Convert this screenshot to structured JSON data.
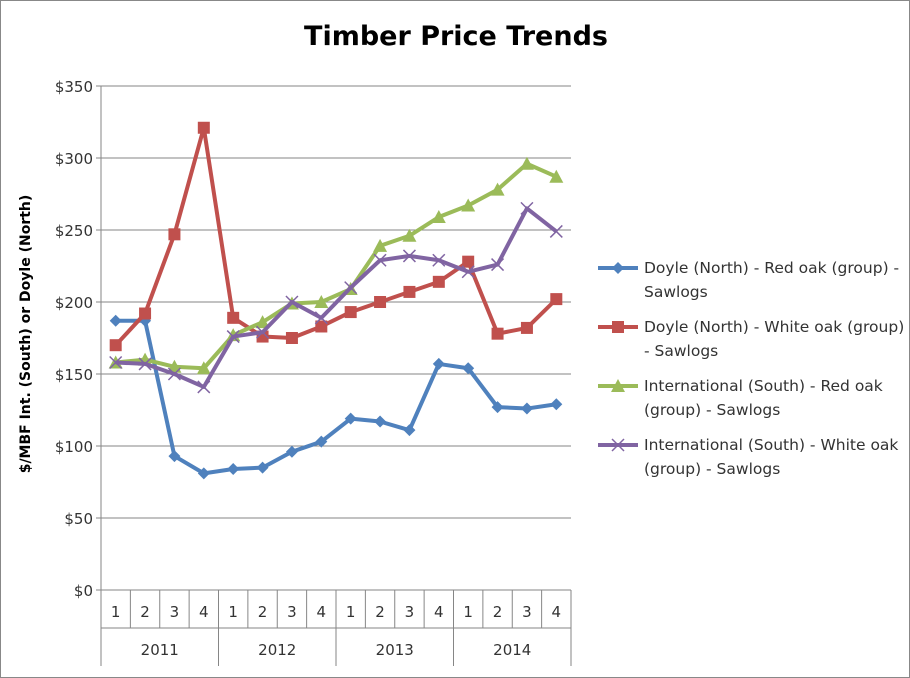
{
  "chart_data": {
    "type": "line",
    "title": "Timber Price Trends",
    "ylabel": "$/MBF Int. (South) or Doyle (North)",
    "xlabel": "",
    "ylim": [
      0,
      350
    ],
    "yticks": [
      "$0",
      "$50",
      "$100",
      "$150",
      "$200",
      "$250",
      "$300",
      "$350"
    ],
    "ytick_values": [
      0,
      50,
      100,
      150,
      200,
      250,
      300,
      350
    ],
    "grid": true,
    "legend": "right",
    "categories": [
      "1",
      "2",
      "3",
      "4",
      "1",
      "2",
      "3",
      "4",
      "1",
      "2",
      "3",
      "4",
      "1",
      "2",
      "3",
      "4"
    ],
    "groups": [
      "2011",
      "2012",
      "2013",
      "2014"
    ],
    "series": [
      {
        "name": "Doyle (North) - Red oak (group) - Sawlogs",
        "color": "#4F81BD",
        "marker": "diamond",
        "values": [
          187,
          187,
          93,
          81,
          84,
          85,
          96,
          103,
          119,
          117,
          111,
          157,
          154,
          127,
          126,
          129
        ]
      },
      {
        "name": "Doyle (North) - White oak (group) - Sawlogs",
        "color": "#C0504D",
        "marker": "square",
        "values": [
          170,
          192,
          247,
          321,
          189,
          176,
          175,
          183,
          193,
          200,
          207,
          214,
          228,
          178,
          182,
          202
        ]
      },
      {
        "name": "International (South) - Red oak (group) - Sawlogs",
        "color": "#9BBB59",
        "marker": "triangle",
        "values": [
          158,
          160,
          155,
          154,
          177,
          186,
          199,
          200,
          209,
          239,
          246,
          259,
          267,
          278,
          296,
          287
        ]
      },
      {
        "name": "International (South) - White oak (group) - Sawlogs",
        "color": "#8064A2",
        "marker": "x",
        "values": [
          158,
          157,
          150,
          141,
          176,
          179,
          200,
          189,
          210,
          229,
          232,
          229,
          221,
          226,
          265,
          249
        ]
      }
    ]
  }
}
